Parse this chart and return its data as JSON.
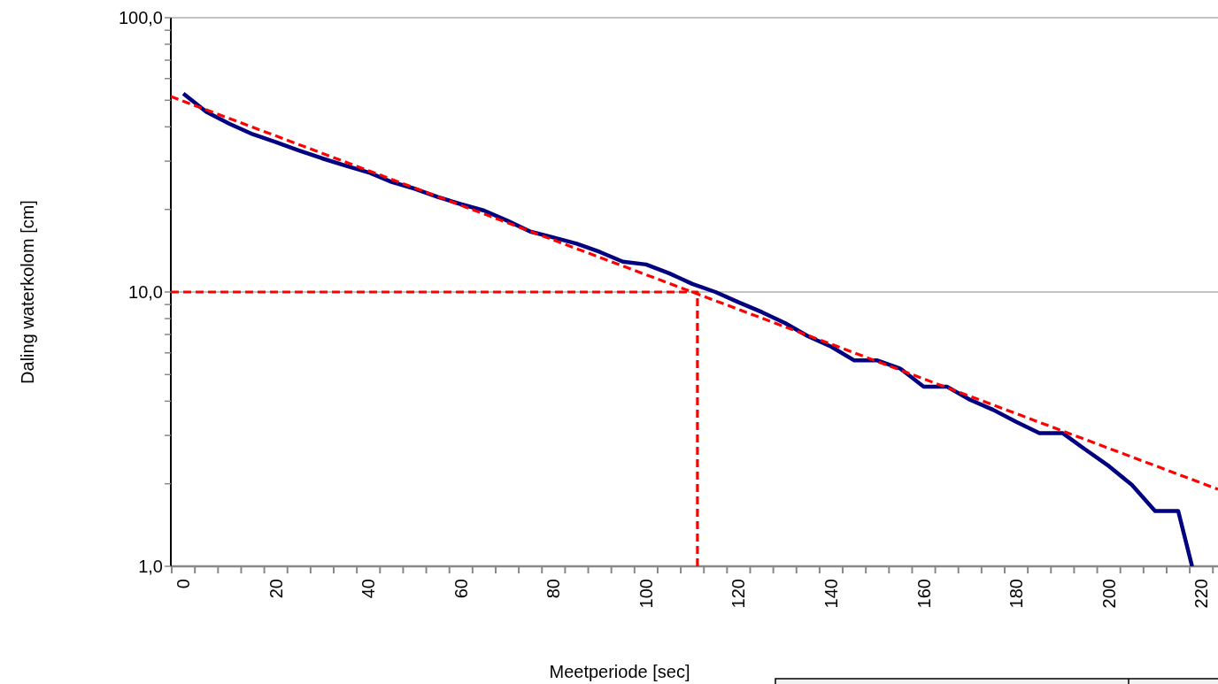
{
  "chart_data": {
    "type": "line",
    "xlabel": "Meetperiode [sec]",
    "ylabel": "Daling waterkolom [cm]",
    "log": "y",
    "grid": "y",
    "xlim": [
      -2.7,
      223.6
    ],
    "ylim": [
      1,
      100
    ],
    "xticks": [
      {
        "value": -2.5,
        "label": null
      },
      {
        "value": 0,
        "label": "0"
      },
      {
        "value": 2.5,
        "label": null
      },
      {
        "value": 7.5,
        "label": null
      },
      {
        "value": 12.5,
        "label": null
      },
      {
        "value": 17.5,
        "label": null
      },
      {
        "value": 20,
        "label": "20"
      },
      {
        "value": 22.5,
        "label": null
      },
      {
        "value": 27.5,
        "label": null
      },
      {
        "value": 32.5,
        "label": null
      },
      {
        "value": 37.5,
        "label": null
      },
      {
        "value": 40,
        "label": "40"
      },
      {
        "value": 42.5,
        "label": null
      },
      {
        "value": 47.5,
        "label": null
      },
      {
        "value": 52.5,
        "label": null
      },
      {
        "value": 57.5,
        "label": null
      },
      {
        "value": 60,
        "label": "60"
      },
      {
        "value": 62.5,
        "label": null
      },
      {
        "value": 67.5,
        "label": null
      },
      {
        "value": 72.5,
        "label": null
      },
      {
        "value": 77.5,
        "label": null
      },
      {
        "value": 80,
        "label": "80"
      },
      {
        "value": 82.5,
        "label": null
      },
      {
        "value": 87.5,
        "label": null
      },
      {
        "value": 92.5,
        "label": null
      },
      {
        "value": 97.5,
        "label": null
      },
      {
        "value": 100,
        "label": "100"
      },
      {
        "value": 102.5,
        "label": null
      },
      {
        "value": 107.5,
        "label": null
      },
      {
        "value": 112.5,
        "label": null
      },
      {
        "value": 117.5,
        "label": null
      },
      {
        "value": 120,
        "label": "120"
      },
      {
        "value": 122.5,
        "label": null
      },
      {
        "value": 127.5,
        "label": null
      },
      {
        "value": 132.5,
        "label": null
      },
      {
        "value": 137.5,
        "label": null
      },
      {
        "value": 140,
        "label": "140"
      },
      {
        "value": 142.5,
        "label": null
      },
      {
        "value": 147.5,
        "label": null
      },
      {
        "value": 152.5,
        "label": null
      },
      {
        "value": 157.5,
        "label": null
      },
      {
        "value": 160,
        "label": "160"
      },
      {
        "value": 162.5,
        "label": null
      },
      {
        "value": 167.5,
        "label": null
      },
      {
        "value": 172.5,
        "label": null
      },
      {
        "value": 177.5,
        "label": null
      },
      {
        "value": 180,
        "label": "180"
      },
      {
        "value": 182.5,
        "label": null
      },
      {
        "value": 187.5,
        "label": null
      },
      {
        "value": 192.5,
        "label": null
      },
      {
        "value": 197.5,
        "label": null
      },
      {
        "value": 200,
        "label": "200"
      },
      {
        "value": 202.5,
        "label": null
      },
      {
        "value": 207.5,
        "label": null
      },
      {
        "value": 212.5,
        "label": null
      },
      {
        "value": 217.5,
        "label": null
      },
      {
        "value": 220,
        "label": "220"
      },
      {
        "value": 222.5,
        "label": null
      }
    ],
    "yticks": [
      {
        "value": 1,
        "label": "1,0"
      },
      {
        "value": 2,
        "label": null
      },
      {
        "value": 3,
        "label": null
      },
      {
        "value": 4,
        "label": null
      },
      {
        "value": 5,
        "label": null
      },
      {
        "value": 6,
        "label": null
      },
      {
        "value": 7,
        "label": null
      },
      {
        "value": 8,
        "label": null
      },
      {
        "value": 9,
        "label": null
      },
      {
        "value": 10,
        "label": "10,0"
      },
      {
        "value": 20,
        "label": null
      },
      {
        "value": 30,
        "label": null
      },
      {
        "value": 40,
        "label": null
      },
      {
        "value": 50,
        "label": null
      },
      {
        "value": 60,
        "label": null
      },
      {
        "value": 70,
        "label": null
      },
      {
        "value": 80,
        "label": null
      },
      {
        "value": 90,
        "label": null
      },
      {
        "value": 100,
        "label": "100,0"
      }
    ],
    "series": [
      {
        "type": "line",
        "color": "#000080",
        "line_style": "solid",
        "x": [
          0,
          5,
          10,
          15,
          20,
          25,
          30,
          35,
          40,
          45,
          50,
          55,
          60,
          65,
          70,
          75,
          80,
          85,
          90,
          95,
          100,
          105,
          110,
          115,
          120,
          125,
          130,
          135,
          140,
          145,
          150,
          155,
          160,
          165,
          170,
          175,
          180,
          185,
          190,
          195,
          200,
          205,
          210,
          215,
          218
        ],
        "values": [
          52.9,
          45.3,
          41.0,
          37.6,
          35.2,
          32.8,
          30.7,
          28.9,
          27.3,
          25.2,
          23.8,
          22.2,
          20.9,
          19.8,
          18.2,
          16.6,
          15.8,
          15.0,
          14.0,
          12.9,
          12.6,
          11.7,
          10.7,
          10.0,
          9.17,
          8.45,
          7.71,
          6.9,
          6.32,
          5.63,
          5.63,
          5.25,
          4.52,
          4.52,
          4.05,
          3.72,
          3.36,
          3.06,
          3.06,
          2.66,
          2.32,
          1.98,
          1.59,
          1.59,
          1
        ]
      },
      {
        "type": "line",
        "color": "#ff0000",
        "line_style": "dashed",
        "x": [
          -2.7,
          223.6
        ],
        "values": [
          51.6,
          1.91
        ]
      },
      {
        "type": "line",
        "color": "#ff0000",
        "line_style": "dashed",
        "x": [
          -2.7,
          111.1,
          111.1
        ],
        "values": [
          10,
          10,
          1
        ]
      }
    ]
  }
}
